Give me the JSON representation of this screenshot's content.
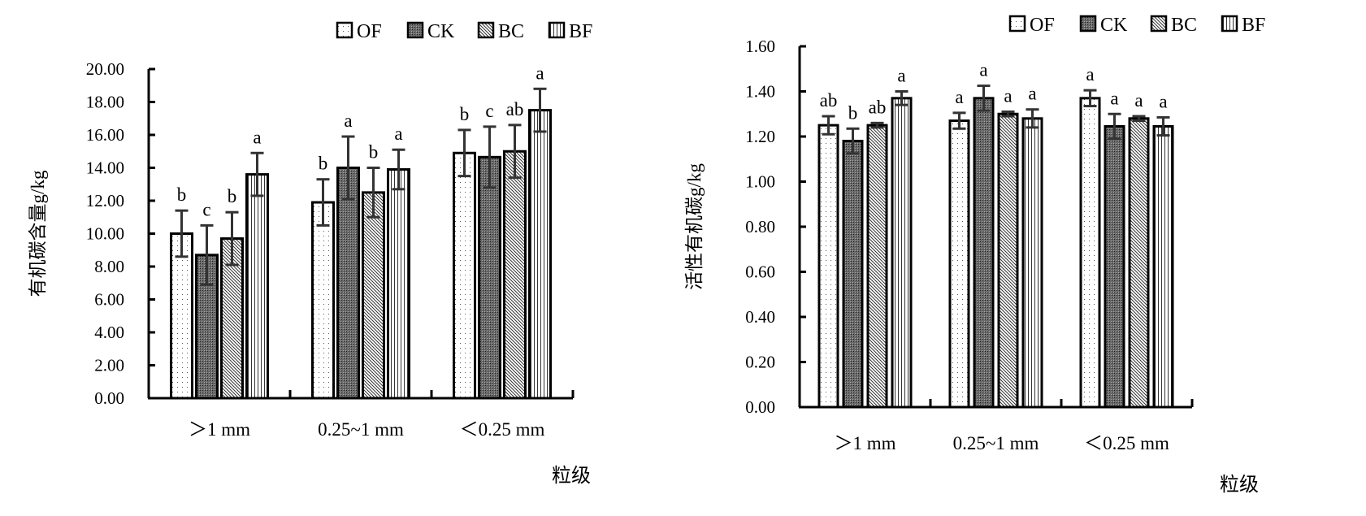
{
  "chart_data": [
    {
      "type": "bar",
      "title": "",
      "xlabel": "粒级",
      "ylabel": "有机碳含量g/kg",
      "ylim": [
        0,
        20
      ],
      "yticks": [
        "0.00",
        "2.00",
        "4.00",
        "6.00",
        "8.00",
        "10.00",
        "12.00",
        "14.00",
        "16.00",
        "18.00",
        "20.00"
      ],
      "categories": [
        ">1 mm",
        "0.25~1 mm",
        "<0.25 mm"
      ],
      "legend": {
        "placement": "top",
        "entries": [
          "OF",
          "CK",
          "BC",
          "BF"
        ]
      },
      "series": [
        {
          "name": "OF",
          "values": [
            10.0,
            11.9,
            14.9
          ],
          "error": [
            1.4,
            1.4,
            1.4
          ],
          "letters": [
            "b",
            "b",
            "b"
          ]
        },
        {
          "name": "CK",
          "values": [
            8.7,
            14.0,
            14.65
          ],
          "error": [
            1.8,
            1.9,
            1.85
          ],
          "letters": [
            "c",
            "a",
            "c"
          ]
        },
        {
          "name": "BC",
          "values": [
            9.7,
            12.5,
            15.0
          ],
          "error": [
            1.6,
            1.5,
            1.6
          ],
          "letters": [
            "b",
            "b",
            "ab"
          ]
        },
        {
          "name": "BF",
          "values": [
            13.6,
            13.9,
            17.5
          ],
          "error": [
            1.3,
            1.2,
            1.3
          ],
          "letters": [
            "a",
            "a",
            "a"
          ]
        }
      ]
    },
    {
      "type": "bar",
      "title": "",
      "xlabel": "粒级",
      "ylabel": "活性有机碳g/kg",
      "ylim": [
        0,
        1.6
      ],
      "yticks": [
        "0.00",
        "0.20",
        "0.40",
        "0.60",
        "0.80",
        "1.00",
        "1.20",
        "1.40",
        "1.60"
      ],
      "categories": [
        ">1 mm",
        "0.25~1 mm",
        "<0.25 mm"
      ],
      "legend": {
        "placement": "top",
        "entries": [
          "OF",
          "CK",
          "BC",
          "BF"
        ]
      },
      "series": [
        {
          "name": "OF",
          "values": [
            1.25,
            1.27,
            1.37
          ],
          "error": [
            0.04,
            0.035,
            0.035
          ],
          "letters": [
            "ab",
            "a",
            "a"
          ]
        },
        {
          "name": "CK",
          "values": [
            1.18,
            1.37,
            1.245
          ],
          "error": [
            0.055,
            0.055,
            0.055
          ],
          "letters": [
            "b",
            "a",
            "a"
          ]
        },
        {
          "name": "BC",
          "values": [
            1.25,
            1.3,
            1.28
          ],
          "error": [
            0.01,
            0.01,
            0.01
          ],
          "letters": [
            "ab",
            "a",
            "a"
          ]
        },
        {
          "name": "BF",
          "values": [
            1.37,
            1.28,
            1.245
          ],
          "error": [
            0.03,
            0.04,
            0.04
          ],
          "letters": [
            "a",
            "a",
            "a"
          ]
        }
      ]
    }
  ]
}
